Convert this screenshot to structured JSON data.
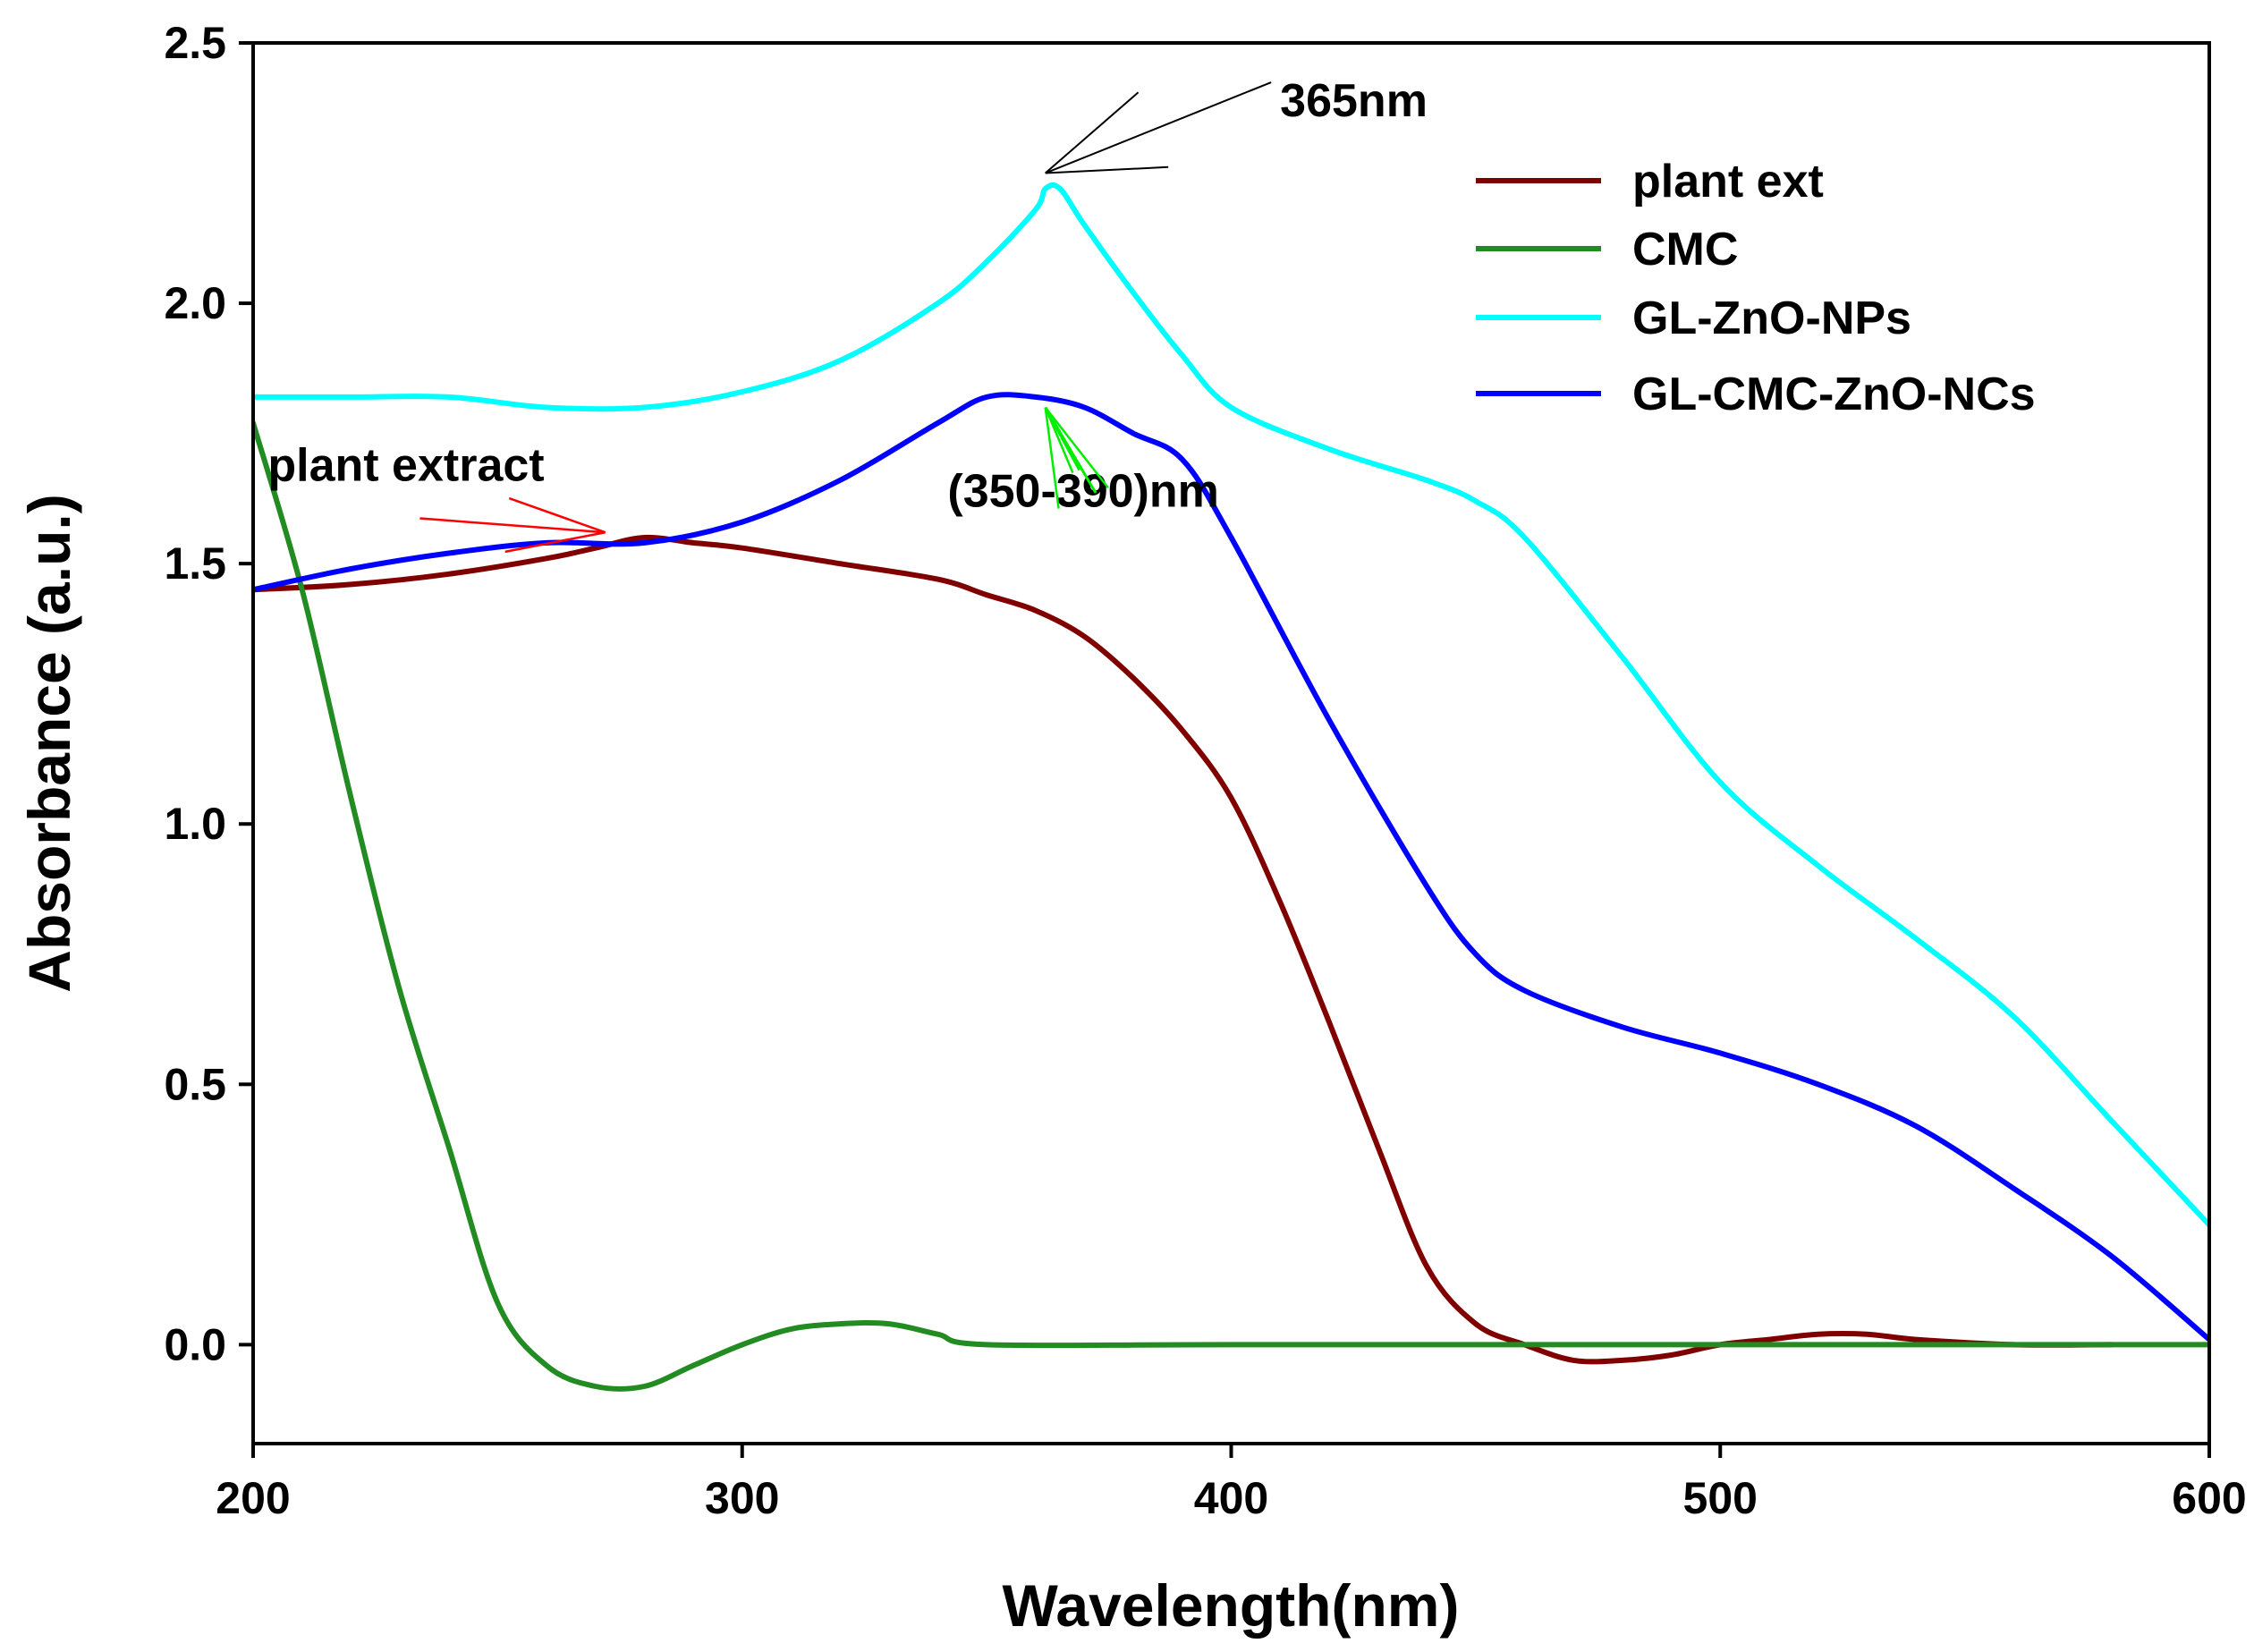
{
  "chart_data": {
    "type": "line",
    "title": "",
    "xlabel": "Wavelength(nm)",
    "ylabel": "Absorbance (a.u.)",
    "xlim": [
      200,
      600
    ],
    "ylim": [
      -0.19,
      2.5
    ],
    "xticks": [
      200,
      300,
      400,
      500,
      600
    ],
    "xtick_labels": [
      "200",
      "300",
      "400",
      "500",
      "600"
    ],
    "yticks": [
      0.0,
      0.5,
      1.0,
      1.5,
      2.0,
      2.5
    ],
    "ytick_labels": [
      "0.0",
      "0.5",
      "1.0",
      "1.5",
      "2.0",
      "2.5"
    ],
    "grid": false,
    "legend_position": "top-right",
    "series": [
      {
        "name": "plant ext",
        "color": "#800000",
        "x": [
          200,
          220,
          240,
          260,
          270,
          280,
          290,
          300,
          320,
          340,
          350,
          360,
          370,
          380,
          390,
          400,
          410,
          420,
          430,
          440,
          450,
          460,
          470,
          480,
          490,
          500,
          510,
          520,
          530,
          540,
          560,
          580
        ],
        "y": [
          1.45,
          1.46,
          1.48,
          1.51,
          1.53,
          1.55,
          1.54,
          1.53,
          1.5,
          1.47,
          1.44,
          1.41,
          1.36,
          1.28,
          1.18,
          1.05,
          0.85,
          0.62,
          0.38,
          0.15,
          0.04,
          0.0,
          -0.03,
          -0.03,
          -0.02,
          0.0,
          0.01,
          0.02,
          0.02,
          0.01,
          0.0,
          0.0
        ]
      },
      {
        "name": " CMC",
        "color": "#228B22",
        "x": [
          200,
          210,
          220,
          230,
          240,
          250,
          260,
          270,
          280,
          290,
          300,
          310,
          320,
          330,
          340,
          350,
          400,
          500,
          600
        ],
        "y": [
          1.77,
          1.45,
          1.05,
          0.68,
          0.38,
          0.08,
          -0.04,
          -0.08,
          -0.08,
          -0.04,
          0.0,
          0.03,
          0.04,
          0.04,
          0.02,
          0.0,
          0.0,
          0.0,
          0.0
        ]
      },
      {
        "name": "GL-ZnO-NPs",
        "color": "#00FFFF",
        "x": [
          200,
          220,
          240,
          260,
          280,
          300,
          320,
          340,
          350,
          360,
          362,
          365,
          370,
          380,
          390,
          400,
          420,
          440,
          450,
          460,
          480,
          500,
          520,
          540,
          560,
          580,
          600
        ],
        "y": [
          1.82,
          1.82,
          1.82,
          1.8,
          1.8,
          1.83,
          1.89,
          2.0,
          2.08,
          2.18,
          2.22,
          2.22,
          2.15,
          2.02,
          1.9,
          1.8,
          1.72,
          1.66,
          1.62,
          1.55,
          1.32,
          1.08,
          0.92,
          0.78,
          0.63,
          0.43,
          0.23
        ]
      },
      {
        "name": " GL-CMC-ZnO-NCs",
        "color": "#0000FF",
        "x": [
          200,
          220,
          240,
          260,
          280,
          300,
          320,
          340,
          350,
          360,
          370,
          380,
          390,
          400,
          420,
          440,
          450,
          460,
          480,
          500,
          520,
          540,
          560,
          580,
          600
        ],
        "y": [
          1.45,
          1.49,
          1.52,
          1.54,
          1.54,
          1.58,
          1.66,
          1.77,
          1.82,
          1.82,
          1.8,
          1.75,
          1.7,
          1.55,
          1.2,
          0.88,
          0.75,
          0.68,
          0.61,
          0.56,
          0.5,
          0.42,
          0.3,
          0.17,
          0.01
        ]
      }
    ],
    "annotations": [
      {
        "text": "365nm",
        "color": "#000000",
        "target_x": 362,
        "target_y": 2.25,
        "label_x": 410,
        "label_y": 2.39
      },
      {
        "text": "plant extract",
        "color": "#FF0000",
        "target_x": 272,
        "target_y": 1.56,
        "label_x": 203,
        "label_y": 1.69
      },
      {
        "text": "(350-390)nm",
        "color": "#00EE00",
        "target_x": 362,
        "target_y": 1.8,
        "label_x": 342,
        "label_y": 1.64
      }
    ]
  }
}
